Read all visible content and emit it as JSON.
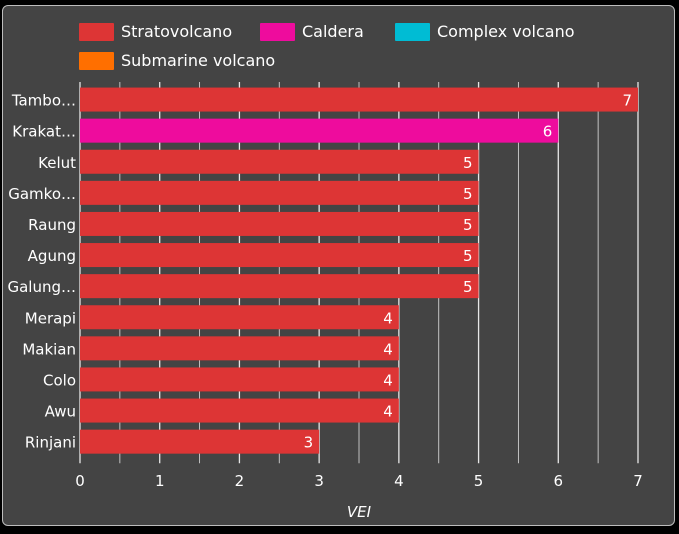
{
  "chart_data": {
    "type": "bar",
    "orientation": "horizontal",
    "categories": [
      "Tambo…",
      "Krakat…",
      "Kelut",
      "Gamko…",
      "Raung",
      "Agung",
      "Galung…",
      "Merapi",
      "Makian",
      "Colo",
      "Awu",
      "Rinjani"
    ],
    "values": [
      7,
      6,
      5,
      5,
      5,
      5,
      5,
      4,
      4,
      4,
      4,
      3
    ],
    "bar_types": [
      "Stratovolcano",
      "Caldera",
      "Stratovolcano",
      "Stratovolcano",
      "Stratovolcano",
      "Stratovolcano",
      "Stratovolcano",
      "Stratovolcano",
      "Stratovolcano",
      "Stratovolcano",
      "Stratovolcano",
      "Stratovolcano"
    ],
    "legend": [
      {
        "name": "Stratovolcano",
        "color": "#dd3535"
      },
      {
        "name": "Caldera",
        "color": "#ee0c9d"
      },
      {
        "name": "Complex volcano",
        "color": "#00bcd4"
      },
      {
        "name": "Submarine volcano",
        "color": "#ff6f00"
      }
    ],
    "legend_position": "top",
    "xlabel": "VEI",
    "ylabel": "",
    "xlim": [
      0,
      7
    ],
    "xticks": [
      0,
      1,
      2,
      3,
      4,
      5,
      6,
      7
    ],
    "grid": true,
    "data_labels": true
  }
}
